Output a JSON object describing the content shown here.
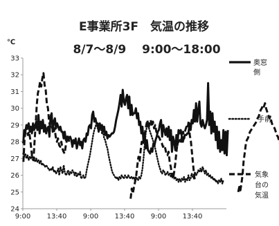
{
  "chart_data": {
    "type": "line",
    "title": "E事業所3F　気温の推移",
    "subtitle": "8/7～8/9　 9:00～18:00",
    "ylabel": "℃",
    "xlabel": "",
    "ylim": [
      24,
      33
    ],
    "yticks": [
      24,
      25,
      26,
      27,
      28,
      29,
      30,
      31,
      32,
      33
    ],
    "xticks": [
      "9:00",
      "13:40",
      "9:00",
      "13:40",
      "9:00",
      "13:40"
    ],
    "grid": false,
    "legend_position": "right",
    "series": [
      {
        "name": "奥窓側",
        "style": "solid",
        "color": "#111111",
        "values": [
          27.9,
          28.7,
          28.6,
          29.0,
          28.8,
          29.1,
          28.6,
          28.9,
          28.5,
          29.1,
          28.7,
          29.0,
          29.2,
          28.7,
          29.6,
          28.5,
          29.2,
          28.8,
          29.3,
          28.6,
          29.0,
          28.5,
          28.8,
          28.9,
          28.3,
          29.5,
          29.7,
          28.6,
          29.2,
          29.4,
          28.8,
          29.1,
          28.9,
          28.7,
          28.9,
          28.6,
          28.6,
          28.2,
          28.6,
          28.1,
          28.3,
          28.3,
          28.2,
          28.3,
          28.1,
          27.7,
          28.1,
          27.9,
          28.2,
          27.6,
          27.9,
          28.2,
          27.8,
          28.0,
          27.6,
          28.1,
          28.2,
          28.0,
          28.5,
          28.4,
          28.9,
          29.0,
          28.8,
          29.6,
          29.8,
          29.2,
          29.4,
          29.1,
          29.1,
          28.6,
          29.1,
          28.8,
          29.0,
          28.6,
          28.9,
          28.4,
          28.6,
          28.2,
          28.4,
          28.3,
          28.4,
          28.5,
          28.5,
          28.6,
          28.9,
          29.3,
          29.6,
          29.9,
          30.3,
          30.8,
          30.1,
          31.1,
          30.4,
          30.2,
          30.6,
          30.8,
          30.0,
          30.7,
          29.6,
          30.2,
          29.6,
          29.7,
          29.7,
          30.0,
          29.4,
          29.7,
          29.0,
          29.2,
          28.5,
          28.9,
          28.0,
          28.5,
          27.6,
          28.1,
          27.5,
          27.4,
          27.3,
          27.6,
          27.4,
          27.9,
          27.8,
          28.1,
          28.3,
          28.6,
          28.7,
          29.1,
          29.3,
          28.3,
          29.0,
          28.7,
          28.4,
          28.8,
          28.3,
          28.9,
          28.1,
          28.7,
          27.4,
          28.3,
          28.0,
          27.5,
          28.4,
          27.8,
          28.7,
          28.5,
          28.7,
          28.3,
          28.0,
          28.3,
          28.4,
          28.4,
          28.5,
          28.5,
          29.1,
          28.7,
          29.3,
          29.1,
          29.9,
          29.2,
          30.3,
          29.2,
          29.9,
          30.4,
          29.1,
          28.9,
          29.3,
          29.0,
          28.8,
          29.0,
          29.3,
          31.5,
          29.0,
          29.8,
          28.5,
          29.7,
          28.6,
          29.2,
          28.1,
          28.9,
          27.6,
          28.6,
          27.4,
          28.1,
          27.5,
          28.7,
          27.3,
          28.6,
          27.2,
          28.7
        ]
      },
      {
        "name": "手前",
        "style": "dotted",
        "color": "#111111",
        "values": [
          27.3,
          27.1,
          27.3,
          27.0,
          27.2,
          26.9,
          27.1,
          27.0,
          27.2,
          26.9,
          27.1,
          26.8,
          27.0,
          26.8,
          26.9,
          26.7,
          26.9,
          26.6,
          26.7,
          26.6,
          26.5,
          26.6,
          26.5,
          26.4,
          26.3,
          26.4,
          26.3,
          26.5,
          26.2,
          26.3,
          26.1,
          26.2,
          26.4,
          26.0,
          26.5,
          26.3,
          26.1,
          26.6,
          26.2,
          26.0,
          26.1,
          26.3,
          26.0,
          26.2,
          26.1,
          26.3,
          26.2,
          26.0,
          26.2,
          25.9,
          26.1,
          26.0,
          26.2,
          25.8,
          25.9,
          26.0,
          25.8,
          25.9,
          26.3,
          26.6,
          26.9,
          27.2,
          27.6,
          28.0,
          28.4,
          28.7,
          28.9,
          29.1,
          28.8,
          29.0,
          28.7,
          28.9,
          28.5,
          28.6,
          28.2,
          28.1,
          27.8,
          27.6,
          27.2,
          26.9,
          26.6,
          26.3,
          26.1,
          26.0,
          25.9,
          25.8,
          25.9,
          25.7,
          25.9,
          25.8,
          26.0,
          25.9,
          25.8,
          26.0,
          25.9,
          25.8,
          26.0,
          25.9,
          25.8,
          25.9,
          25.8,
          25.9,
          25.7,
          25.9,
          25.8,
          25.7,
          25.9,
          25.8,
          26.0,
          26.4,
          27.0,
          27.8,
          28.5,
          28.9,
          29.0,
          28.8,
          28.6,
          28.4,
          28.2,
          28.0,
          27.8,
          27.5,
          27.2,
          26.9,
          26.6,
          26.4,
          26.2,
          26.1,
          26.3,
          26.2,
          26.0,
          26.1,
          26.2,
          26.0,
          26.1,
          25.9,
          26.0,
          26.1,
          25.8,
          25.9,
          25.7,
          25.8,
          25.6,
          25.8,
          25.6,
          25.8,
          25.7,
          25.9,
          25.6,
          25.8,
          25.7,
          26.0,
          25.7,
          25.8,
          26.1,
          25.9,
          25.8,
          26.2,
          26.0,
          26.1,
          26.3,
          26.2,
          26.4,
          26.2,
          26.5,
          26.3,
          26.1,
          26.3,
          26.0,
          26.1,
          25.9,
          26.0,
          25.8,
          25.9,
          25.7,
          25.8,
          25.6,
          25.7,
          25.5,
          25.7,
          25.6,
          25.8,
          25.5,
          25.7
        ]
      },
      {
        "name": "気象台の気温",
        "style": "dashed",
        "color": "#111111",
        "segments": [
          [
            26.8,
            28.1,
            28.7,
            28.9,
            28.4,
            28.6,
            28.2,
            27.6,
            27.0,
            26.9,
            28.0,
            29.0,
            30.2,
            30.9,
            31.2,
            31.6,
            31.3,
            31.8,
            32.1,
            31.4,
            31.1,
            30.3,
            30.0,
            29.2,
            28.9,
            29.0,
            28.8,
            28.5,
            28.8,
            28.3,
            28.0,
            28.2,
            27.8,
            27.7,
            28.0,
            27.6,
            27.4,
            27.3,
            27.8,
            28.1,
            28.3,
            28.0
          ],
          [
            24.6,
            25.2,
            24.9,
            25.3,
            25.6,
            26.0,
            26.6,
            27.1,
            26.8,
            27.5,
            28.0,
            27.8,
            28.3,
            28.6,
            29.0,
            29.3,
            28.8,
            29.1,
            29.3,
            28.9,
            29.2,
            28.8,
            29.0,
            28.6,
            28.5,
            28.3,
            28.2,
            28.0,
            27.9,
            27.7,
            27.8,
            27.6,
            27.3,
            27.2,
            27.4,
            26.8,
            26.5,
            26.0,
            25.8,
            26.2,
            26.7,
            27.4,
            27.9,
            28.0,
            28.1,
            27.9,
            28.4,
            28.6,
            28.2,
            28.7,
            28.9,
            28.8,
            29.2,
            28.4,
            28.0,
            27.3,
            26.6,
            25.9,
            25.6
          ],
          [
            25.0,
            25.3,
            25.1,
            25.5,
            26.0,
            26.8,
            27.3,
            27.8,
            28.1,
            28.2,
            28.4,
            28.6,
            28.7,
            28.8,
            28.9,
            29.0,
            29.1,
            29.2,
            29.4,
            29.5,
            29.7,
            29.9,
            30.0,
            30.2,
            30.1,
            30.3,
            30.0,
            29.8,
            29.6,
            29.4,
            29.5,
            29.2,
            29.0,
            28.9,
            28.8,
            28.6,
            28.4,
            28.3,
            28.1,
            27.9,
            27.6,
            27.2,
            26.9,
            26.7
          ]
        ]
      }
    ]
  }
}
